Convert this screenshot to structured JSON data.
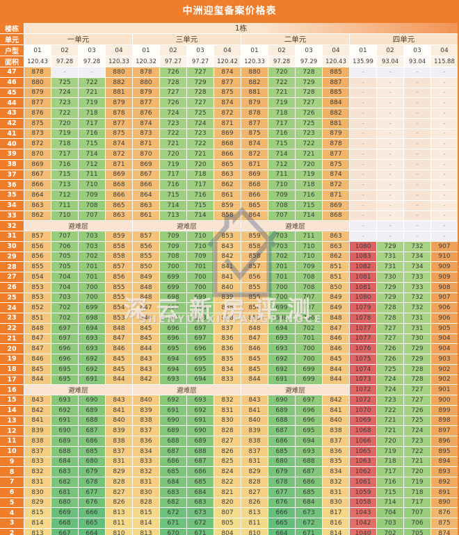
{
  "title": "中洲迎玺备案价格表",
  "header": {
    "building_label": "楼栋",
    "building_value": "1栋",
    "unit_label": "单元",
    "units": [
      "一单元",
      "三单元",
      "二单元",
      "四单元"
    ],
    "type_label": "户型",
    "types": [
      "01",
      "02",
      "03",
      "04",
      "01",
      "02",
      "03",
      "04",
      "01",
      "02",
      "03",
      "04",
      "01",
      "02",
      "03",
      "04"
    ],
    "area_label": "面积",
    "areas": [
      "120.43",
      "97.28",
      "97.28",
      "120.33",
      "120.32",
      "97.27",
      "97.27",
      "120.42",
      "120.33",
      "97.28",
      "97.29",
      "120.43",
      "135.99",
      "93.04",
      "93.04",
      "115.88"
    ]
  },
  "refuge_text": "避难层",
  "watermark": {
    "cn": "深云新房评测",
    "en": "SHENYUNXINFANGPINGCE"
  },
  "colors": {
    "frame_orange": "#EF7D2A",
    "grid_line": "#FFFFFF",
    "refuge_bg": "#F9E4D3",
    "dash_gray": "#F0EFF4",
    "dash_peach_dark": "#F7E3D3",
    "dash_peach_light": "#FAEBDF",
    "heat_green_min": "#63BE7B",
    "heat_yellow_mid": "#F2DC8A",
    "heat_orange": "#EE9E56",
    "heat_red_max": "#DB6063"
  },
  "floors": [
    {
      "f": "47",
      "c": [
        "878",
        "-",
        "-",
        "880",
        "878",
        "726",
        "727",
        "874",
        "880",
        "720",
        "728",
        "885",
        "-",
        "-",
        "-",
        "-"
      ]
    },
    {
      "f": "46",
      "c": [
        "880",
        "725",
        "722",
        "882",
        "880",
        "728",
        "729",
        "877",
        "882",
        "722",
        "729",
        "887",
        "-",
        "-",
        "-",
        "-"
      ]
    },
    {
      "f": "45",
      "c": [
        "879",
        "724",
        "721",
        "881",
        "879",
        "727",
        "728",
        "875",
        "881",
        "721",
        "728",
        "885",
        "-",
        "-",
        "-",
        "-"
      ]
    },
    {
      "f": "44",
      "c": [
        "877",
        "723",
        "719",
        "879",
        "877",
        "726",
        "727",
        "874",
        "879",
        "719",
        "727",
        "884",
        "-",
        "-",
        "-",
        "-"
      ]
    },
    {
      "f": "43",
      "c": [
        "876",
        "722",
        "718",
        "878",
        "876",
        "724",
        "725",
        "872",
        "878",
        "718",
        "726",
        "882",
        "-",
        "-",
        "-",
        "-"
      ]
    },
    {
      "f": "42",
      "c": [
        "875",
        "720",
        "717",
        "877",
        "874",
        "723",
        "724",
        "871",
        "877",
        "717",
        "725",
        "881",
        "-",
        "-",
        "-",
        "-"
      ]
    },
    {
      "f": "41",
      "c": [
        "873",
        "719",
        "716",
        "875",
        "873",
        "722",
        "723",
        "869",
        "875",
        "716",
        "723",
        "879",
        "-",
        "-",
        "-",
        "-"
      ]
    },
    {
      "f": "40",
      "c": [
        "872",
        "718",
        "715",
        "874",
        "871",
        "721",
        "722",
        "868",
        "874",
        "715",
        "722",
        "878",
        "-",
        "-",
        "-",
        "-"
      ]
    },
    {
      "f": "39",
      "c": [
        "870",
        "717",
        "714",
        "872",
        "870",
        "720",
        "721",
        "866",
        "872",
        "714",
        "721",
        "877",
        "-",
        "-",
        "-",
        "-"
      ]
    },
    {
      "f": "38",
      "c": [
        "869",
        "716",
        "712",
        "871",
        "869",
        "719",
        "720",
        "865",
        "871",
        "712",
        "720",
        "875",
        "-",
        "-",
        "-",
        "-"
      ]
    },
    {
      "f": "37",
      "c": [
        "867",
        "715",
        "711",
        "869",
        "867",
        "717",
        "718",
        "863",
        "869",
        "711",
        "719",
        "874",
        "-",
        "-",
        "-",
        "-"
      ]
    },
    {
      "f": "36",
      "c": [
        "866",
        "713",
        "710",
        "868",
        "866",
        "716",
        "717",
        "862",
        "868",
        "710",
        "718",
        "872",
        "-",
        "-",
        "-",
        "-"
      ]
    },
    {
      "f": "35",
      "c": [
        "864",
        "712",
        "709",
        "866",
        "864",
        "715",
        "716",
        "861",
        "866",
        "709",
        "716",
        "871",
        "-",
        "-",
        "-",
        "-"
      ]
    },
    {
      "f": "34",
      "c": [
        "863",
        "711",
        "708",
        "865",
        "863",
        "714",
        "715",
        "859",
        "865",
        "708",
        "715",
        "869",
        "-",
        "-",
        "-",
        "-"
      ]
    },
    {
      "f": "33",
      "c": [
        "862",
        "710",
        "707",
        "863",
        "861",
        "713",
        "714",
        "858",
        "864",
        "707",
        "714",
        "868",
        "-",
        "-",
        "-",
        "-"
      ]
    },
    {
      "f": "32",
      "refuge": true,
      "c4": [
        "-",
        "-",
        "-",
        "-"
      ]
    },
    {
      "f": "31",
      "c": [
        "857",
        "707",
        "703",
        "859",
        "857",
        "709",
        "710",
        "853",
        "859",
        "703",
        "711",
        "863",
        "-",
        "-",
        "-",
        "-"
      ]
    },
    {
      "f": "30",
      "c": [
        "856",
        "706",
        "703",
        "858",
        "856",
        "709",
        "710",
        "843",
        "858",
        "703",
        "710",
        "863",
        "1080",
        "729",
        "732",
        "907"
      ]
    },
    {
      "f": "29",
      "c": [
        "856",
        "705",
        "702",
        "858",
        "855",
        "708",
        "709",
        "842",
        "858",
        "702",
        "710",
        "862",
        "1083",
        "731",
        "734",
        "910"
      ]
    },
    {
      "f": "28",
      "c": [
        "855",
        "705",
        "701",
        "857",
        "850",
        "700",
        "701",
        "841",
        "857",
        "701",
        "709",
        "851",
        "1082",
        "731",
        "734",
        "909"
      ]
    },
    {
      "f": "27",
      "c": [
        "854",
        "704",
        "701",
        "856",
        "849",
        "699",
        "700",
        "841",
        "856",
        "701",
        "708",
        "851",
        "1081",
        "730",
        "733",
        "909"
      ]
    },
    {
      "f": "26",
      "c": [
        "853",
        "704",
        "700",
        "855",
        "848",
        "699",
        "700",
        "840",
        "855",
        "700",
        "708",
        "850",
        "1081",
        "729",
        "733",
        "908"
      ]
    },
    {
      "f": "25",
      "c": [
        "853",
        "703",
        "700",
        "855",
        "848",
        "698",
        "699",
        "839",
        "855",
        "700",
        "707",
        "849",
        "1080",
        "729",
        "732",
        "907"
      ]
    },
    {
      "f": "24",
      "c": [
        "852",
        "702",
        "699",
        "854",
        "847",
        "697",
        "698",
        "838",
        "854",
        "699",
        "707",
        "849",
        "1079",
        "728",
        "732",
        "906"
      ]
    },
    {
      "f": "23",
      "c": [
        "851",
        "702",
        "698",
        "853",
        "846",
        "697",
        "698",
        "838",
        "853",
        "698",
        "706",
        "848",
        "1078",
        "728",
        "731",
        "906"
      ]
    },
    {
      "f": "22",
      "c": [
        "848",
        "697",
        "694",
        "848",
        "845",
        "696",
        "697",
        "837",
        "848",
        "694",
        "702",
        "847",
        "1077",
        "727",
        "731",
        "905"
      ]
    },
    {
      "f": "21",
      "c": [
        "847",
        "697",
        "693",
        "847",
        "845",
        "696",
        "697",
        "836",
        "847",
        "693",
        "701",
        "846",
        "1077",
        "727",
        "730",
        "904"
      ]
    },
    {
      "f": "20",
      "c": [
        "847",
        "696",
        "693",
        "846",
        "844",
        "695",
        "696",
        "836",
        "846",
        "693",
        "700",
        "846",
        "1076",
        "726",
        "729",
        "904"
      ]
    },
    {
      "f": "19",
      "c": [
        "846",
        "696",
        "692",
        "845",
        "843",
        "694",
        "695",
        "835",
        "845",
        "692",
        "700",
        "845",
        "1075",
        "726",
        "729",
        "903"
      ]
    },
    {
      "f": "18",
      "c": [
        "845",
        "695",
        "692",
        "845",
        "843",
        "694",
        "695",
        "834",
        "845",
        "692",
        "699",
        "844",
        "1074",
        "725",
        "728",
        "902"
      ]
    },
    {
      "f": "17",
      "c": [
        "844",
        "695",
        "691",
        "844",
        "842",
        "693",
        "694",
        "833",
        "844",
        "691",
        "699",
        "844",
        "1073",
        "724",
        "728",
        "902"
      ]
    },
    {
      "f": "16",
      "refuge": true,
      "c4": [
        "1072",
        "724",
        "727",
        "901"
      ]
    },
    {
      "f": "15",
      "c": [
        "843",
        "693",
        "690",
        "843",
        "840",
        "692",
        "693",
        "832",
        "843",
        "690",
        "697",
        "842",
        "1072",
        "723",
        "727",
        "900"
      ]
    },
    {
      "f": "14",
      "c": [
        "842",
        "692",
        "689",
        "841",
        "839",
        "691",
        "692",
        "831",
        "841",
        "689",
        "696",
        "841",
        "1070",
        "722",
        "726",
        "899"
      ]
    },
    {
      "f": "13",
      "c": [
        "841",
        "691",
        "688",
        "840",
        "838",
        "690",
        "691",
        "830",
        "840",
        "688",
        "696",
        "840",
        "1069",
        "721",
        "725",
        "898"
      ]
    },
    {
      "f": "12",
      "c": [
        "839",
        "690",
        "687",
        "839",
        "837",
        "689",
        "690",
        "828",
        "839",
        "687",
        "695",
        "838",
        "1068",
        "721",
        "724",
        "897"
      ]
    },
    {
      "f": "11",
      "c": [
        "838",
        "689",
        "686",
        "838",
        "836",
        "688",
        "689",
        "827",
        "838",
        "686",
        "694",
        "837",
        "1066",
        "720",
        "723",
        "896"
      ]
    },
    {
      "f": "10",
      "c": [
        "837",
        "688",
        "685",
        "837",
        "834",
        "687",
        "688",
        "826",
        "837",
        "685",
        "693",
        "836",
        "1065",
        "719",
        "722",
        "895"
      ]
    },
    {
      "f": "9",
      "c": [
        "833",
        "684",
        "680",
        "831",
        "833",
        "686",
        "687",
        "825",
        "831",
        "680",
        "688",
        "835",
        "1063",
        "718",
        "721",
        "894"
      ]
    },
    {
      "f": "8",
      "c": [
        "832",
        "683",
        "679",
        "829",
        "832",
        "685",
        "686",
        "824",
        "829",
        "679",
        "687",
        "834",
        "1062",
        "717",
        "720",
        "893"
      ]
    },
    {
      "f": "7",
      "c": [
        "831",
        "682",
        "678",
        "828",
        "831",
        "684",
        "685",
        "822",
        "828",
        "678",
        "686",
        "832",
        "1061",
        "716",
        "719",
        "892"
      ]
    },
    {
      "f": "6",
      "c": [
        "830",
        "681",
        "677",
        "827",
        "830",
        "683",
        "684",
        "821",
        "827",
        "677",
        "685",
        "831",
        "1059",
        "715",
        "718",
        "891"
      ]
    },
    {
      "f": "5",
      "c": [
        "829",
        "680",
        "676",
        "826",
        "828",
        "682",
        "683",
        "820",
        "826",
        "676",
        "684",
        "830",
        "1058",
        "714",
        "717",
        "890"
      ]
    },
    {
      "f": "4",
      "c": [
        "815",
        "669",
        "666",
        "813",
        "815",
        "672",
        "673",
        "807",
        "813",
        "666",
        "673",
        "817",
        "1043",
        "704",
        "707",
        "876"
      ]
    },
    {
      "f": "3",
      "c": [
        "814",
        "668",
        "665",
        "811",
        "814",
        "671",
        "672",
        "805",
        "811",
        "665",
        "672",
        "816",
        "1042",
        "703",
        "706",
        "875"
      ]
    },
    {
      "f": "2",
      "c": [
        "813",
        "667",
        "664",
        "810",
        "813",
        "670",
        "671",
        "804",
        "810",
        "664",
        "671",
        "814",
        "1040",
        "702",
        "705",
        "874"
      ]
    }
  ]
}
